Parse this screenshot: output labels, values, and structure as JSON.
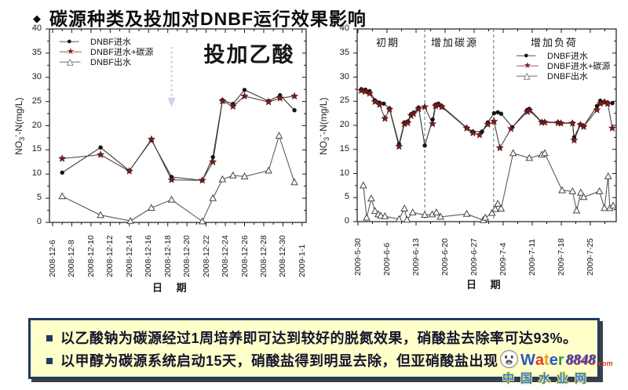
{
  "slide": {
    "bullet": "◆",
    "title": "碳源种类及投加对DNBF运行效果影响"
  },
  "chart_data": [
    {
      "type": "line",
      "panel": "left",
      "title": "投加乙酸",
      "xlabel": "日 期",
      "ylabel": "NO3--N(mg/L)",
      "ylabel_parts": {
        "pre": "NO",
        "sub": "3",
        "sup": "-",
        "post": "-N(mg/L)"
      },
      "ylim": [
        0,
        40
      ],
      "ytick_values": [
        0,
        5,
        10,
        15,
        20,
        25,
        30,
        35,
        40
      ],
      "xtick_labels": [
        "2008-12-6",
        "2008-12-8",
        "2008-12-10",
        "2008-12-12",
        "2008-12-14",
        "2008-12-16",
        "2008-12-18",
        "2008-12-20",
        "2008-12-22",
        "2008-12-24",
        "2008-12-26",
        "2008-12-28",
        "2008-12-30",
        "2009-1-1"
      ],
      "xtick_interval_days": 2,
      "legend_items": [
        {
          "glyph": "—●—",
          "label": "DNBF进水"
        },
        {
          "glyph": "—★—",
          "label": "DNBF进水+碳源"
        },
        {
          "glyph": "—△—",
          "label": "DNBF出水"
        }
      ],
      "annotation_arrow": {
        "day": 12.4,
        "value_from": 36.3,
        "value_to": 24.5,
        "color": "#becbe4"
      },
      "series": [
        {
          "name": "DNBF进水",
          "marker": "circle",
          "marker_color": "#141414",
          "line_color": "#333333",
          "points": [
            [
              1,
              10.3
            ],
            [
              5,
              15.5
            ],
            [
              8,
              10.7
            ],
            [
              10.3,
              17.0
            ],
            [
              12.4,
              9.4
            ],
            [
              15.6,
              8.7
            ],
            [
              16.7,
              13.5
            ],
            [
              17.7,
              25.3
            ],
            [
              18.8,
              24.5
            ],
            [
              20,
              27.4
            ],
            [
              22.5,
              25.1
            ],
            [
              23.7,
              26.3
            ],
            [
              25.2,
              23.2
            ]
          ]
        },
        {
          "name": "DNBF进水+碳源",
          "marker": "star",
          "marker_color": "#7a1b1b",
          "line_color": "#5a4040",
          "points": [
            [
              1,
              13.2
            ],
            [
              5,
              14.0
            ],
            [
              8,
              10.6
            ],
            [
              10.3,
              17.2
            ],
            [
              12.4,
              8.8
            ],
            [
              15.6,
              8.7
            ],
            [
              16.7,
              12.5
            ],
            [
              17.7,
              25.1
            ],
            [
              18.8,
              24.0
            ],
            [
              20,
              26.1
            ],
            [
              22.5,
              24.9
            ],
            [
              23.7,
              25.7
            ],
            [
              25.2,
              26.1
            ]
          ]
        },
        {
          "name": "DNBF出水",
          "marker": "triangle-open",
          "marker_color": "#444444",
          "line_color": "#5c5c5c",
          "points": [
            [
              1,
              5.4
            ],
            [
              5,
              1.5
            ],
            [
              8.1,
              0.3
            ],
            [
              10.3,
              3.0
            ],
            [
              12.4,
              4.7
            ],
            [
              15.6,
              0.2
            ],
            [
              16.7,
              5.0
            ],
            [
              17.7,
              8.9
            ],
            [
              18.8,
              9.7
            ],
            [
              20,
              9.5
            ],
            [
              22.5,
              10.7
            ],
            [
              23.6,
              17.9
            ],
            [
              25.2,
              8.3
            ]
          ]
        }
      ]
    },
    {
      "type": "line",
      "panel": "right",
      "title": "",
      "xlabel": "日 期",
      "ylabel": "NO3--N(mg/L)",
      "ylabel_parts": {
        "pre": "NO",
        "sub": "3",
        "sup": "-",
        "post": "-N(mg/L)"
      },
      "ylim": [
        0,
        40
      ],
      "ytick_values": [
        0,
        5,
        10,
        15,
        20,
        25,
        30,
        35,
        40
      ],
      "xtick_labels": [
        "2009-5-30",
        "2009-6-6",
        "2009-6-13",
        "2009-6-20",
        "2009-6-27",
        "2009-7-4",
        "2009-7-11",
        "2009-7-18",
        "2009-7-25"
      ],
      "xtick_interval_days": 7,
      "phases": [
        {
          "label": "初期",
          "center_day": 7.2
        },
        {
          "label": "增加碳源",
          "center_day": 23.3
        },
        {
          "label": "增加负荷",
          "center_day": 47.3
        }
      ],
      "divider_days": [
        16.1,
        32.7
      ],
      "divider_color": "#4f7a55",
      "legend_items": [
        {
          "glyph": "—●—",
          "label": "DNBF进水"
        },
        {
          "glyph": "—★—",
          "label": "DNBF进水+碳源"
        },
        {
          "glyph": "—△—",
          "label": "DNBF出水"
        }
      ],
      "series": [
        {
          "name": "DNBF进水",
          "marker": "circle",
          "marker_color": "#141414",
          "line_color": "#333333",
          "points": [
            [
              0.8,
              27.5
            ],
            [
              1.8,
              27.4
            ],
            [
              2.8,
              27.1
            ],
            [
              4.1,
              25.2
            ],
            [
              5.2,
              24.7
            ],
            [
              6.2,
              24.5
            ],
            [
              7.6,
              23.5
            ],
            [
              9.9,
              16.1
            ],
            [
              11.2,
              20.6
            ],
            [
              12,
              20.8
            ],
            [
              12.8,
              22.3
            ],
            [
              13.4,
              22.6
            ],
            [
              14.6,
              23.7
            ],
            [
              16.1,
              15.8
            ],
            [
              18,
              21.2
            ],
            [
              18.7,
              24.3
            ],
            [
              19.4,
              24.5
            ],
            [
              20.2,
              24.0
            ],
            [
              26.2,
              19.5
            ],
            [
              27.7,
              18.7
            ],
            [
              29.9,
              18.7
            ],
            [
              31.3,
              20.6
            ],
            [
              32.8,
              22.5
            ],
            [
              33.7,
              22.7
            ],
            [
              34.5,
              22.4
            ],
            [
              37.2,
              19.6
            ],
            [
              40.8,
              23.2
            ],
            [
              41.3,
              23.4
            ],
            [
              44.3,
              20.7
            ],
            [
              45,
              20.7
            ],
            [
              48.2,
              20.6
            ],
            [
              48.9,
              20.5
            ],
            [
              51.7,
              20.5
            ],
            [
              52.1,
              17.5
            ],
            [
              53.6,
              20.2
            ],
            [
              54.4,
              19.8
            ],
            [
              57.6,
              24.0
            ],
            [
              58.4,
              25.1
            ],
            [
              59.4,
              24.9
            ],
            [
              60.2,
              24.7
            ],
            [
              61.3,
              24.6
            ]
          ]
        },
        {
          "name": "DNBF进水+碳源",
          "marker": "star",
          "marker_color": "#7a1b1b",
          "line_color": "#5a4040",
          "points": [
            [
              0.8,
              27.2
            ],
            [
              1.8,
              27.0
            ],
            [
              2.8,
              26.6
            ],
            [
              4.1,
              24.9
            ],
            [
              5.2,
              24.3
            ],
            [
              6.5,
              21.4
            ],
            [
              7.6,
              23.3
            ],
            [
              9.9,
              15.6
            ],
            [
              11.2,
              20.3
            ],
            [
              12,
              20.5
            ],
            [
              12.8,
              22.0
            ],
            [
              13.4,
              22.4
            ],
            [
              14.6,
              23.4
            ],
            [
              16.1,
              23.8
            ],
            [
              18,
              20.3
            ],
            [
              18.7,
              24.0
            ],
            [
              19.4,
              24.2
            ],
            [
              20.2,
              23.8
            ],
            [
              26.2,
              19.4
            ],
            [
              27.7,
              18.4
            ],
            [
              29.3,
              18.0
            ],
            [
              31.3,
              20.2
            ],
            [
              32.8,
              20.8
            ],
            [
              34.2,
              15.3
            ],
            [
              36.9,
              19.3
            ],
            [
              40.8,
              22.8
            ],
            [
              41.3,
              23.1
            ],
            [
              44.3,
              20.6
            ],
            [
              45,
              20.6
            ],
            [
              48.2,
              20.5
            ],
            [
              48.9,
              20.4
            ],
            [
              51.7,
              20.4
            ],
            [
              52.1,
              16.9
            ],
            [
              53.6,
              20.1
            ],
            [
              54.4,
              19.7
            ],
            [
              57.6,
              23.2
            ],
            [
              58.4,
              24.5
            ],
            [
              59.4,
              24.8
            ],
            [
              60.2,
              24.5
            ],
            [
              61.3,
              19.4
            ]
          ]
        },
        {
          "name": "DNBF出水",
          "marker": "triangle-open",
          "marker_color": "#444444",
          "line_color": "#5c5c5c",
          "points": [
            [
              1.3,
              7.5
            ],
            [
              2.1,
              0.8
            ],
            [
              3.2,
              4.8
            ],
            [
              4.1,
              2.2
            ],
            [
              4.9,
              1.5
            ],
            [
              5.5,
              1.2
            ],
            [
              6.5,
              1.1
            ],
            [
              9.9,
              0.5
            ],
            [
              11.2,
              2.7
            ],
            [
              11.8,
              0.4
            ],
            [
              13.2,
              1.9
            ],
            [
              16.1,
              1.4
            ],
            [
              17.9,
              1.5
            ],
            [
              18.9,
              1.9
            ],
            [
              19.9,
              1.0
            ],
            [
              26.2,
              1.6
            ],
            [
              30.2,
              0.3
            ],
            [
              30.7,
              0.8
            ],
            [
              32.3,
              1.8
            ],
            [
              33.1,
              2.6
            ],
            [
              33.7,
              3.7
            ],
            [
              34.5,
              2.7
            ],
            [
              37.4,
              14.2
            ],
            [
              41.3,
              13.2
            ],
            [
              44.3,
              13.9
            ],
            [
              45,
              14.2
            ],
            [
              49.2,
              6.5
            ],
            [
              51.7,
              6.3
            ],
            [
              52.7,
              2.3
            ],
            [
              53.7,
              6.0
            ],
            [
              54.4,
              5.1
            ],
            [
              58.2,
              6.3
            ],
            [
              59.4,
              2.8
            ],
            [
              60.3,
              9.4
            ],
            [
              60.7,
              2.8
            ],
            [
              61.5,
              3.3
            ]
          ]
        }
      ]
    }
  ],
  "callout": {
    "bullet_glyph": "▪",
    "bullets": [
      "以乙酸钠为碳源经过1周培养即可达到较好的脱氮效果，硝酸盐去除率可达93%。",
      "以甲醇为碳源系统启动15天，硝酸盐得到明显去除，但亚硝酸盐出现"
    ],
    "bg_color": "#ffffc9",
    "border_color": "#1e3c64",
    "text_color": "#14142e"
  },
  "watermark": {
    "face_icon": "smiley-face-icon",
    "letters": [
      {
        "ch": "W",
        "color": "#2a56c6"
      },
      {
        "ch": "a",
        "color": "#d93a2b"
      },
      {
        "ch": "t",
        "color": "#f0a31a"
      },
      {
        "ch": "e",
        "color": "#2a56c6"
      },
      {
        "ch": "r",
        "color": "#2f9e44"
      }
    ],
    "number": "8848",
    "number_color": "#2f49c0",
    "com": ".com",
    "com_color": "#d93a2b",
    "site_name": "中国水业网",
    "site_color": "#2b7de0"
  }
}
